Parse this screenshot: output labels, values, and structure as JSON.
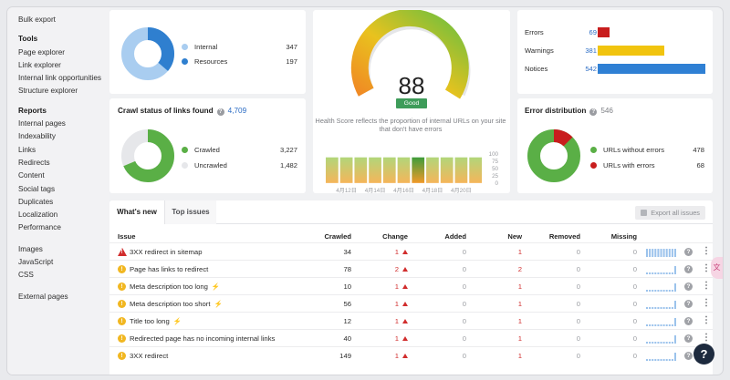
{
  "sidebar": {
    "top_item": "Bulk export",
    "tools_heading": "Tools",
    "tools": [
      "Page explorer",
      "Link explorer",
      "Internal link opportunities",
      "Structure explorer"
    ],
    "reports_heading": "Reports",
    "reports": [
      "Internal pages",
      "Indexability",
      "Links",
      "Redirects",
      "Content",
      "Social tags",
      "Duplicates",
      "Localization",
      "Performance"
    ],
    "resources": [
      "Images",
      "JavaScript",
      "CSS"
    ],
    "external": [
      "External pages"
    ]
  },
  "internal_card": {
    "legend": [
      {
        "label": "Internal",
        "value": "347",
        "color": "#a9cdf0"
      },
      {
        "label": "Resources",
        "value": "197",
        "color": "#2f7fcf"
      }
    ]
  },
  "crawl_status": {
    "title": "Crawl status of links found",
    "count": "4,709",
    "legend": [
      {
        "label": "Crawled",
        "value": "3,227",
        "color": "#5aaf46"
      },
      {
        "label": "Uncrawled",
        "value": "1,482",
        "color": "#e6e7ea"
      }
    ]
  },
  "health": {
    "score": "88",
    "badge": "Good",
    "description": "Health Score reflects the proportion of internal URLs on your site that don't have errors",
    "chart_data": {
      "type": "bar",
      "x_tick_labels": [
        "4月12日",
        "4月14日",
        "4月16日",
        "4月18日",
        "4月20日"
      ],
      "y_tick_labels": [
        "100",
        "75",
        "50",
        "25",
        "0"
      ],
      "ylim": [
        0,
        100
      ],
      "values": [
        88,
        88,
        88,
        88,
        88,
        88,
        88,
        88,
        88,
        88,
        88
      ],
      "highlight_index": 6,
      "colors": {
        "top": "#b2d67a",
        "bottom": "#f5b55a",
        "highlight_top": "#3e9c3b",
        "highlight_bottom": "#f19a2a"
      }
    }
  },
  "issues_summary": {
    "rows": [
      {
        "label": "Errors",
        "value": "69",
        "color": "#c81d1d",
        "fraction": 0.11
      },
      {
        "label": "Warnings",
        "value": "381",
        "color": "#f1c40f",
        "fraction": 0.62
      },
      {
        "label": "Notices",
        "value": "542",
        "color": "#2f80d4",
        "fraction": 1.0
      }
    ]
  },
  "error_distribution": {
    "title": "Error distribution",
    "count": "546",
    "legend": [
      {
        "label": "URLs without errors",
        "value": "478",
        "color": "#5aaf46"
      },
      {
        "label": "URLs with errors",
        "value": "68",
        "color": "#c81d1d"
      }
    ]
  },
  "issues_table": {
    "tabs": [
      "What's new",
      "Top issues"
    ],
    "export_label": "Export all issues",
    "columns": [
      "Issue",
      "Crawled",
      "Change",
      "Added",
      "New",
      "Removed",
      "Missing"
    ],
    "rows": [
      {
        "icon": "error",
        "issue": "3XX redirect in sitemap",
        "flash": false,
        "crawled": "34",
        "change": "1",
        "added": "0",
        "new": "1",
        "removed": "0",
        "missing": "0"
      },
      {
        "icon": "warning",
        "issue": "Page has links to redirect",
        "flash": false,
        "crawled": "78",
        "change": "2",
        "added": "0",
        "new": "2",
        "removed": "0",
        "missing": "0"
      },
      {
        "icon": "warning",
        "issue": "Meta description too long",
        "flash": true,
        "crawled": "10",
        "change": "1",
        "added": "0",
        "new": "1",
        "removed": "0",
        "missing": "0"
      },
      {
        "icon": "warning",
        "issue": "Meta description too short",
        "flash": true,
        "crawled": "56",
        "change": "1",
        "added": "0",
        "new": "1",
        "removed": "0",
        "missing": "0"
      },
      {
        "icon": "warning",
        "issue": "Title too long",
        "flash": true,
        "crawled": "12",
        "change": "1",
        "added": "0",
        "new": "1",
        "removed": "0",
        "missing": "0"
      },
      {
        "icon": "warning",
        "issue": "Redirected page has no incoming internal links",
        "flash": false,
        "crawled": "40",
        "change": "1",
        "added": "0",
        "new": "1",
        "removed": "0",
        "missing": "0"
      },
      {
        "icon": "warning",
        "issue": "3XX redirect",
        "flash": false,
        "crawled": "149",
        "change": "1",
        "added": "0",
        "new": "1",
        "removed": "0",
        "missing": "0"
      }
    ]
  },
  "help_label": "?"
}
